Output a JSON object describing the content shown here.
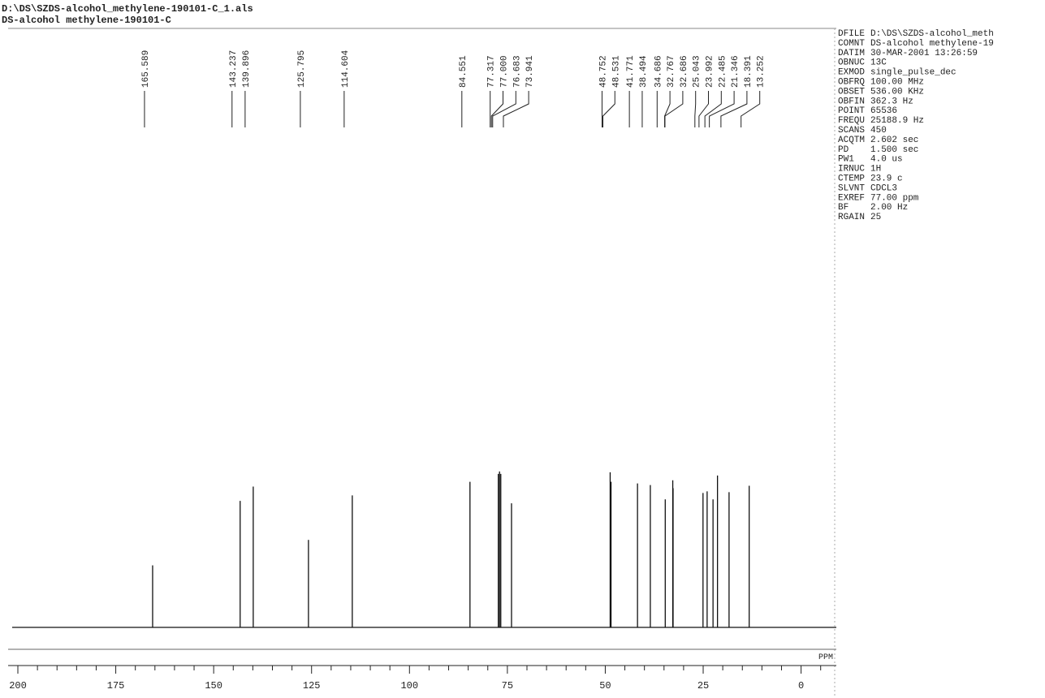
{
  "chart_data": {
    "type": "nmr-spectrum",
    "file": "D:\\DS\\SZDS-alcohol_methylene-190101-C_1.als",
    "title": "DS-alcohol methylene-190101-C",
    "xlabel": "PPM",
    "x": [
      165.589,
      143.237,
      139.896,
      125.795,
      114.604,
      84.551,
      77.317,
      77.0,
      76.683,
      73.941,
      48.752,
      48.531,
      41.771,
      38.494,
      34.686,
      32.767,
      32.686,
      25.043,
      23.992,
      22.485,
      21.346,
      18.391,
      13.252
    ],
    "peak_labels": [
      "165.589",
      "143.237",
      "139.896",
      "125.795",
      "114.604",
      "84.551",
      "77.317",
      "77.000",
      "76.683",
      "73.941",
      "48.752",
      "48.531",
      "41.771",
      "38.494",
      "34.686",
      "32.767",
      "32.686",
      "25.043",
      "23.992",
      "22.485",
      "21.346",
      "18.391",
      "13.252"
    ],
    "values": [
      78,
      159,
      177,
      110,
      166,
      183,
      193,
      196,
      193,
      156,
      195,
      183,
      181,
      179,
      161,
      185,
      175,
      169,
      171,
      161,
      191,
      170,
      178
    ],
    "ylim": [
      0,
      200
    ],
    "xlim": [
      200,
      -9
    ],
    "xticks": [
      200,
      175,
      150,
      125,
      100,
      75,
      50,
      25,
      0
    ],
    "xminorticks": [
      195,
      190,
      185,
      180,
      170,
      165,
      160,
      155,
      145,
      140,
      135,
      130,
      120,
      115,
      110,
      105,
      95,
      90,
      85,
      80,
      70,
      65,
      60,
      55,
      45,
      40,
      35,
      30,
      20,
      15,
      10,
      5,
      -5
    ],
    "color": "#111111",
    "parameters": [
      [
        "DFILE",
        "D:\\DS\\SZDS-alcohol_meth"
      ],
      [
        "COMNT",
        "DS-alcohol methylene-19"
      ],
      [
        "DATIM",
        "30-MAR-2001 13:26:59"
      ],
      [
        "OBNUC",
        "13C"
      ],
      [
        "EXMOD",
        "single_pulse_dec"
      ],
      [
        "OBFRQ",
        "100.00 MHz"
      ],
      [
        "OBSET",
        "536.00 KHz"
      ],
      [
        "OBFIN",
        "362.3 Hz"
      ],
      [
        "POINT",
        "65536"
      ],
      [
        "FREQU",
        "25188.9 Hz"
      ],
      [
        "SCANS",
        "450"
      ],
      [
        "ACQTM",
        "2.602 sec"
      ],
      [
        "PD",
        "1.500 sec"
      ],
      [
        "PW1",
        "4.0 us"
      ],
      [
        "IRNUC",
        "1H"
      ],
      [
        "CTEMP",
        "23.9 c"
      ],
      [
        "SLVNT",
        "CDCL3"
      ],
      [
        "EXREF",
        "77.00 ppm"
      ],
      [
        "BF",
        "2.00 Hz"
      ],
      [
        "RGAIN",
        "25"
      ]
    ]
  }
}
